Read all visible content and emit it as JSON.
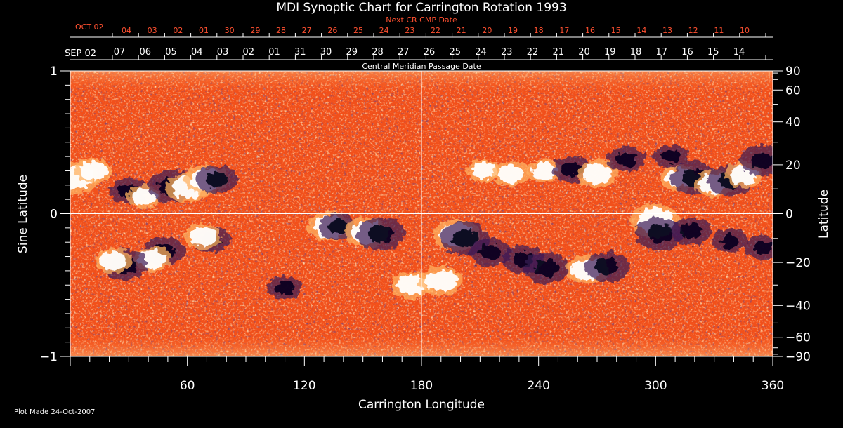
{
  "chart_data": {
    "type": "heatmap",
    "title": "MDI Synoptic Chart for Carrington Rotation 1993",
    "xlabel": "Carrington Longitude",
    "ylabel": "Sine Latitude",
    "ylabel_right": "Latitude",
    "xlim": [
      0,
      360
    ],
    "ylim": [
      -1,
      1
    ],
    "x_ticks": [
      60,
      120,
      180,
      240,
      300,
      360
    ],
    "y_ticks_left": [
      {
        "value": 1,
        "label": "1"
      },
      {
        "value": 0,
        "label": "0"
      },
      {
        "value": -1,
        "label": "−1"
      }
    ],
    "lat_ticks_right": [
      {
        "deg": 90,
        "label": "90"
      },
      {
        "deg": 60,
        "label": "60"
      },
      {
        "deg": 40,
        "label": "40"
      },
      {
        "deg": 20,
        "label": "20"
      },
      {
        "deg": 0,
        "label": "0"
      },
      {
        "deg": -20,
        "label": "−20"
      },
      {
        "deg": -40,
        "label": "−40"
      },
      {
        "deg": -60,
        "label": "−60"
      },
      {
        "deg": -90,
        "label": "−90"
      }
    ],
    "grid_lines": {
      "longitude": 180,
      "sine_latitude": 0
    },
    "top_axis_next": {
      "title": "Next CR CMP Date",
      "first_label": "OCT 02",
      "labels": [
        "04",
        "03",
        "02",
        "01",
        "30",
        "29",
        "28",
        "27",
        "26",
        "25",
        "24",
        "23",
        "22",
        "21",
        "20",
        "19",
        "18",
        "17",
        "16",
        "15",
        "14",
        "13",
        "12",
        "11",
        "10"
      ]
    },
    "top_axis_current": {
      "title": "Central Meridian Passage Date",
      "first_label": "SEP 02",
      "labels": [
        "07",
        "06",
        "05",
        "04",
        "03",
        "02",
        "01",
        "31",
        "30",
        "29",
        "28",
        "27",
        "26",
        "25",
        "24",
        "23",
        "22",
        "21",
        "20",
        "19",
        "18",
        "17",
        "16",
        "15",
        "14"
      ]
    },
    "colorscale": [
      "#0a0a3c",
      "#5a2a70",
      "#ff4a10",
      "#ffb060",
      "#ffffff"
    ],
    "regions": [
      {
        "lon": 3,
        "sinlat": 0.25,
        "polarity": "positive",
        "strength": 0.9
      },
      {
        "lon": 12,
        "sinlat": 0.3,
        "polarity": "positive",
        "strength": 0.6
      },
      {
        "lon": 30,
        "sinlat": 0.16,
        "polarity": "negative",
        "strength": 0.6
      },
      {
        "lon": 38,
        "sinlat": 0.12,
        "polarity": "positive",
        "strength": 0.5
      },
      {
        "lon": 52,
        "sinlat": 0.19,
        "polarity": "negative",
        "strength": 0.9
      },
      {
        "lon": 60,
        "sinlat": 0.18,
        "polarity": "positive",
        "strength": 0.8
      },
      {
        "lon": 70,
        "sinlat": 0.24,
        "polarity": "positive",
        "strength": 0.8
      },
      {
        "lon": 75,
        "sinlat": 0.24,
        "polarity": "negative",
        "strength": 0.7
      },
      {
        "lon": 72,
        "sinlat": -0.18,
        "polarity": "negative",
        "strength": 0.6
      },
      {
        "lon": 68,
        "sinlat": -0.16,
        "polarity": "positive",
        "strength": 0.6
      },
      {
        "lon": 48,
        "sinlat": -0.26,
        "polarity": "negative",
        "strength": 0.7
      },
      {
        "lon": 42,
        "sinlat": -0.32,
        "polarity": "positive",
        "strength": 0.6
      },
      {
        "lon": 28,
        "sinlat": -0.36,
        "polarity": "negative",
        "strength": 0.8
      },
      {
        "lon": 22,
        "sinlat": -0.33,
        "polarity": "positive",
        "strength": 0.6
      },
      {
        "lon": 110,
        "sinlat": -0.52,
        "polarity": "negative",
        "strength": 0.5
      },
      {
        "lon": 133,
        "sinlat": -0.09,
        "polarity": "positive",
        "strength": 0.8
      },
      {
        "lon": 137,
        "sinlat": -0.09,
        "polarity": "negative",
        "strength": 0.6
      },
      {
        "lon": 152,
        "sinlat": -0.13,
        "polarity": "positive",
        "strength": 0.8
      },
      {
        "lon": 159,
        "sinlat": -0.14,
        "polarity": "negative",
        "strength": 0.9
      },
      {
        "lon": 175,
        "sinlat": -0.5,
        "polarity": "positive",
        "strength": 0.7
      },
      {
        "lon": 190,
        "sinlat": -0.47,
        "polarity": "positive",
        "strength": 0.8
      },
      {
        "lon": 198,
        "sinlat": -0.15,
        "polarity": "positive",
        "strength": 0.9
      },
      {
        "lon": 202,
        "sinlat": -0.17,
        "polarity": "negative",
        "strength": 0.9
      },
      {
        "lon": 215,
        "sinlat": -0.27,
        "polarity": "negative",
        "strength": 0.7
      },
      {
        "lon": 232,
        "sinlat": -0.32,
        "polarity": "negative",
        "strength": 0.7
      },
      {
        "lon": 244,
        "sinlat": -0.38,
        "polarity": "negative",
        "strength": 0.8
      },
      {
        "lon": 265,
        "sinlat": -0.39,
        "polarity": "positive",
        "strength": 0.8
      },
      {
        "lon": 275,
        "sinlat": -0.37,
        "polarity": "negative",
        "strength": 0.8
      },
      {
        "lon": 300,
        "sinlat": -0.05,
        "polarity": "positive",
        "strength": 1.0
      },
      {
        "lon": 302,
        "sinlat": -0.14,
        "polarity": "negative",
        "strength": 0.9
      },
      {
        "lon": 318,
        "sinlat": -0.12,
        "polarity": "negative",
        "strength": 0.7
      },
      {
        "lon": 338,
        "sinlat": -0.19,
        "polarity": "negative",
        "strength": 0.5
      },
      {
        "lon": 355,
        "sinlat": -0.24,
        "polarity": "negative",
        "strength": 0.5
      },
      {
        "lon": 212,
        "sinlat": 0.3,
        "polarity": "positive",
        "strength": 0.5
      },
      {
        "lon": 226,
        "sinlat": 0.28,
        "polarity": "positive",
        "strength": 0.6
      },
      {
        "lon": 243,
        "sinlat": 0.3,
        "polarity": "positive",
        "strength": 0.5
      },
      {
        "lon": 257,
        "sinlat": 0.31,
        "polarity": "negative",
        "strength": 0.6
      },
      {
        "lon": 270,
        "sinlat": 0.28,
        "polarity": "positive",
        "strength": 0.7
      },
      {
        "lon": 285,
        "sinlat": 0.38,
        "polarity": "negative",
        "strength": 0.6
      },
      {
        "lon": 308,
        "sinlat": 0.4,
        "polarity": "negative",
        "strength": 0.5
      },
      {
        "lon": 312,
        "sinlat": 0.25,
        "polarity": "positive",
        "strength": 0.6
      },
      {
        "lon": 320,
        "sinlat": 0.25,
        "polarity": "negative",
        "strength": 0.9
      },
      {
        "lon": 330,
        "sinlat": 0.21,
        "polarity": "positive",
        "strength": 0.7
      },
      {
        "lon": 338,
        "sinlat": 0.23,
        "polarity": "negative",
        "strength": 0.8
      },
      {
        "lon": 345,
        "sinlat": 0.27,
        "polarity": "positive",
        "strength": 0.6
      },
      {
        "lon": 355,
        "sinlat": 0.37,
        "polarity": "negative",
        "strength": 0.8
      }
    ]
  },
  "footer": {
    "plot_made": "Plot Made 24-Oct-2007"
  }
}
